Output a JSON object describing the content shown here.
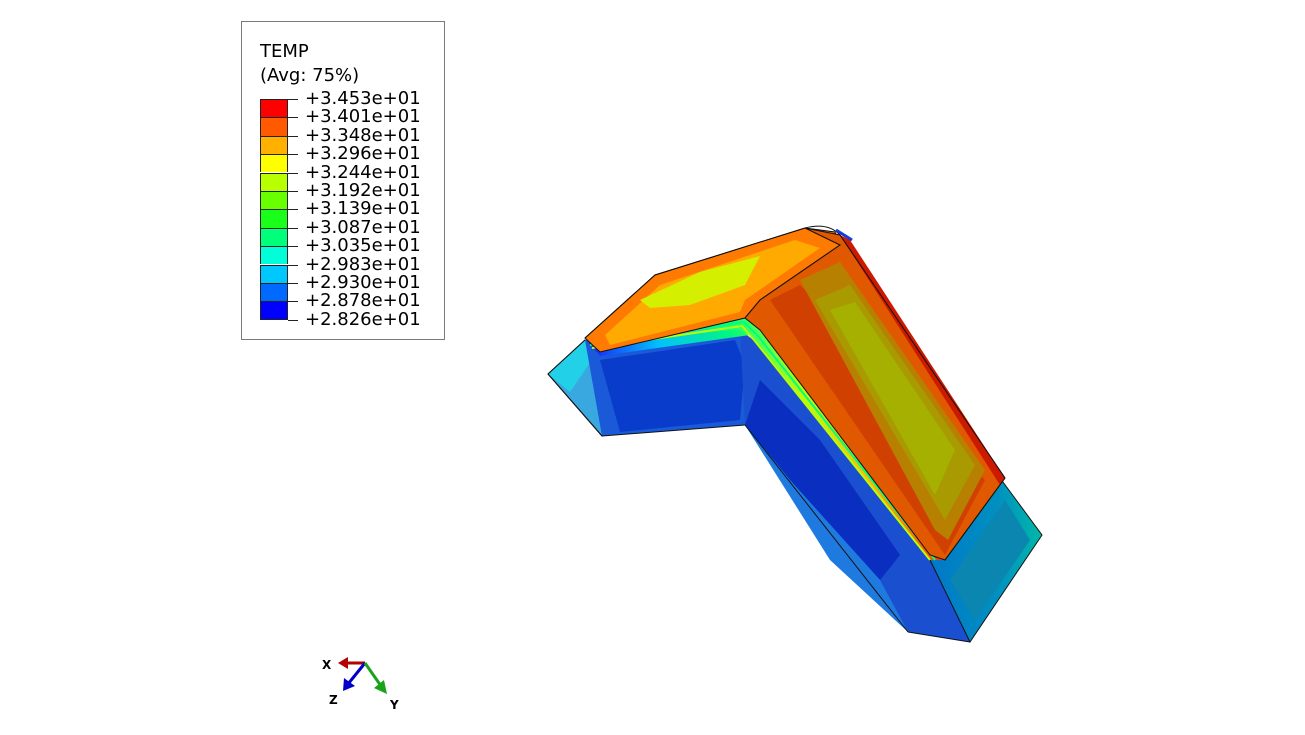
{
  "legend": {
    "title": "TEMP",
    "subtitle": "(Avg: 75%)",
    "levels": [
      {
        "label": "+3.453e+01",
        "color": "#ff0000"
      },
      {
        "label": "+3.401e+01",
        "color": "#ff5a00"
      },
      {
        "label": "+3.348e+01",
        "color": "#ffb000"
      },
      {
        "label": "+3.296e+01",
        "color": "#ffff00"
      },
      {
        "label": "+3.244e+01",
        "color": "#b8ff00"
      },
      {
        "label": "+3.192e+01",
        "color": "#6aff00"
      },
      {
        "label": "+3.139e+01",
        "color": "#1aff1a"
      },
      {
        "label": "+3.087e+01",
        "color": "#00ff7a"
      },
      {
        "label": "+3.035e+01",
        "color": "#00ffd8"
      },
      {
        "label": "+2.983e+01",
        "color": "#00c8ff"
      },
      {
        "label": "+2.930e+01",
        "color": "#006aff"
      },
      {
        "label": "+2.878e+01",
        "color": "#0000ff"
      },
      {
        "label": "+2.826e+01",
        "color": null
      }
    ]
  },
  "triad": {
    "x_label": "X",
    "y_label": "Y",
    "z_label": "Z",
    "x_color": "#b30000",
    "y_color": "#1aa31a",
    "z_color": "#0000c8"
  }
}
